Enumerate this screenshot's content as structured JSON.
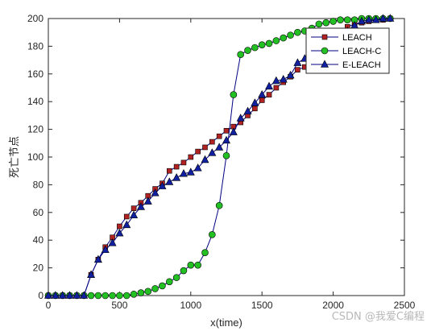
{
  "watermark": "CSDN @我爱C编程",
  "chart_data": {
    "type": "line",
    "xlabel": "x(time)",
    "ylabel": "死亡节点",
    "xlim": [
      0,
      2500
    ],
    "ylim": [
      0,
      200
    ],
    "xticks": [
      0,
      500,
      1000,
      1500,
      2000,
      2500
    ],
    "yticks": [
      0,
      20,
      40,
      60,
      80,
      100,
      120,
      140,
      160,
      180,
      200
    ],
    "grid": false,
    "legend_position": "top-right",
    "series": [
      {
        "name": "LEACH",
        "color": "#000080",
        "marker": "square",
        "marker_color": "#b22222",
        "x": [
          0,
          50,
          100,
          150,
          200,
          250,
          300,
          350,
          400,
          450,
          500,
          550,
          600,
          650,
          700,
          750,
          800,
          850,
          900,
          950,
          1000,
          1050,
          1100,
          1150,
          1200,
          1250,
          1300,
          1350,
          1400,
          1450,
          1500,
          1550,
          1600,
          1650,
          1700,
          1750,
          1800,
          1850,
          1900,
          1950,
          2000,
          2050,
          2100,
          2150,
          2200,
          2250,
          2300,
          2350,
          2400
        ],
        "y": [
          0,
          0,
          0,
          0,
          0,
          0,
          15,
          26,
          35,
          42,
          50,
          57,
          63,
          67,
          72,
          77,
          81,
          90,
          93,
          96,
          100,
          104,
          107,
          111,
          115,
          119,
          122,
          125,
          130,
          135,
          141,
          145,
          150,
          154,
          158,
          163,
          165,
          170,
          176,
          182,
          187,
          191,
          194,
          196,
          197,
          198,
          199,
          199,
          200
        ]
      },
      {
        "name": "LEACH-C",
        "color": "#000080",
        "marker": "circle",
        "marker_color": "#22c022",
        "x": [
          0,
          50,
          100,
          150,
          200,
          250,
          300,
          350,
          400,
          450,
          500,
          550,
          600,
          650,
          700,
          750,
          800,
          850,
          900,
          950,
          1000,
          1050,
          1100,
          1150,
          1200,
          1250,
          1300,
          1350,
          1400,
          1450,
          1500,
          1550,
          1600,
          1650,
          1700,
          1750,
          1800,
          1850,
          1900,
          1950,
          2000,
          2050,
          2100,
          2150,
          2200,
          2250,
          2300,
          2350,
          2400
        ],
        "y": [
          0,
          0,
          0,
          0,
          0,
          0,
          0,
          0,
          0,
          0,
          0,
          0,
          1,
          2,
          3,
          5,
          7,
          10,
          13,
          18,
          22,
          22,
          31,
          44,
          65,
          101,
          145,
          174,
          177,
          179,
          181,
          182,
          184,
          186,
          188,
          190,
          191,
          193,
          196,
          197,
          198,
          199,
          199,
          199,
          200,
          200,
          200,
          200,
          200
        ]
      },
      {
        "name": "E-LEACH",
        "color": "#000080",
        "marker": "triangle",
        "marker_color": "#1020a0",
        "x": [
          0,
          50,
          100,
          150,
          200,
          250,
          300,
          350,
          400,
          450,
          500,
          550,
          600,
          650,
          700,
          750,
          800,
          850,
          900,
          950,
          1000,
          1050,
          1100,
          1150,
          1200,
          1250,
          1300,
          1350,
          1400,
          1450,
          1500,
          1550,
          1600,
          1650,
          1700,
          1750,
          1800,
          1850,
          1900,
          1950,
          2000,
          2050,
          2100,
          2150,
          2200,
          2250,
          2300,
          2350,
          2400
        ],
        "y": [
          0,
          0,
          0,
          0,
          0,
          0,
          15,
          26,
          33,
          38,
          45,
          51,
          58,
          64,
          68,
          74,
          79,
          82,
          85,
          88,
          89,
          92,
          98,
          103,
          107,
          112,
          118,
          128,
          133,
          139,
          145,
          151,
          155,
          156,
          159,
          168,
          171,
          173,
          175,
          178,
          182,
          186,
          191,
          195,
          198,
          199,
          199,
          200,
          200
        ]
      }
    ]
  }
}
